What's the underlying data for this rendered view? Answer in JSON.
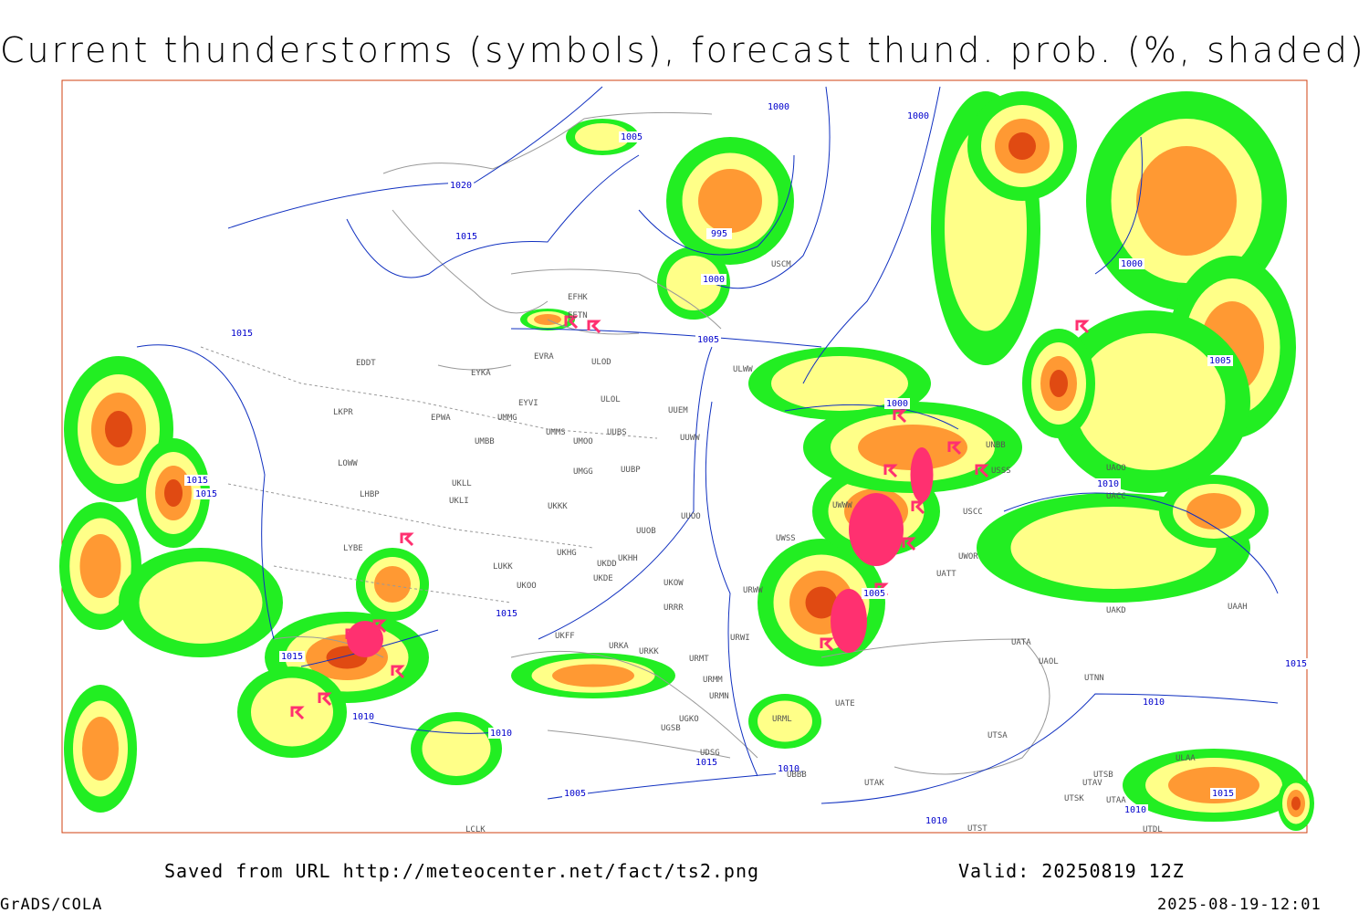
{
  "header": {
    "title": "Current thunderstorms (symbols), forecast thund. prob. (%, shaded)"
  },
  "footer": {
    "saved": "Saved from URL http://meteocenter.net/fact/ts2.png",
    "valid": "Valid: 20250819 12Z",
    "software": "GrADS/COLA",
    "timestamp": "2025-08-19-12:01"
  },
  "isobar_labels": [
    "1000",
    "1005",
    "1020",
    "1015",
    "995",
    "1000",
    "1005",
    "1015",
    "1000",
    "1000",
    "1005",
    "1000",
    "1010",
    "1015",
    "1015",
    "1005",
    "1015",
    "1015",
    "1010",
    "1010",
    "1010",
    "1015",
    "1010",
    "1010",
    "1005",
    "1010",
    "1015",
    "1015"
  ],
  "stations": [
    "EFHK",
    "EETN",
    "EVRA",
    "ULOD",
    "EYKA",
    "EDDT",
    "EYVI",
    "ULOL",
    "UUEM",
    "ULWW",
    "EPWA",
    "UMMG",
    "LKPR",
    "UMMS",
    "UMOO",
    "UUBS",
    "UMBB",
    "UUWW",
    "LOWW",
    "UMGG",
    "UUBP",
    "UKLL",
    "UKLI",
    "LHBP",
    "UKKK",
    "UUOO",
    "UUOB",
    "LYBE",
    "UKHH",
    "UKHG",
    "UKDD",
    "LUKK",
    "UKDE",
    "UKOO",
    "UKOW",
    "URWW",
    "URRR",
    "UKFF",
    "URKA",
    "URWI",
    "URKK",
    "URMT",
    "URMM",
    "URMN",
    "UGKO",
    "UGSB",
    "UDSG",
    "UBBB",
    "UTAK",
    "LCLK",
    "UWSS",
    "UWWW",
    "UATT",
    "UWOR",
    "UACC",
    "UAOO",
    "UAKD",
    "UAAH",
    "UATA",
    "UAOL",
    "UTNN",
    "UTSA",
    "UTSB",
    "UTAV",
    "UTSK",
    "UTAA",
    "UTST",
    "UTDL",
    "ULAA",
    "USCM",
    "USCC",
    "USSS",
    "UNBB",
    "UATE",
    "URML"
  ]
}
